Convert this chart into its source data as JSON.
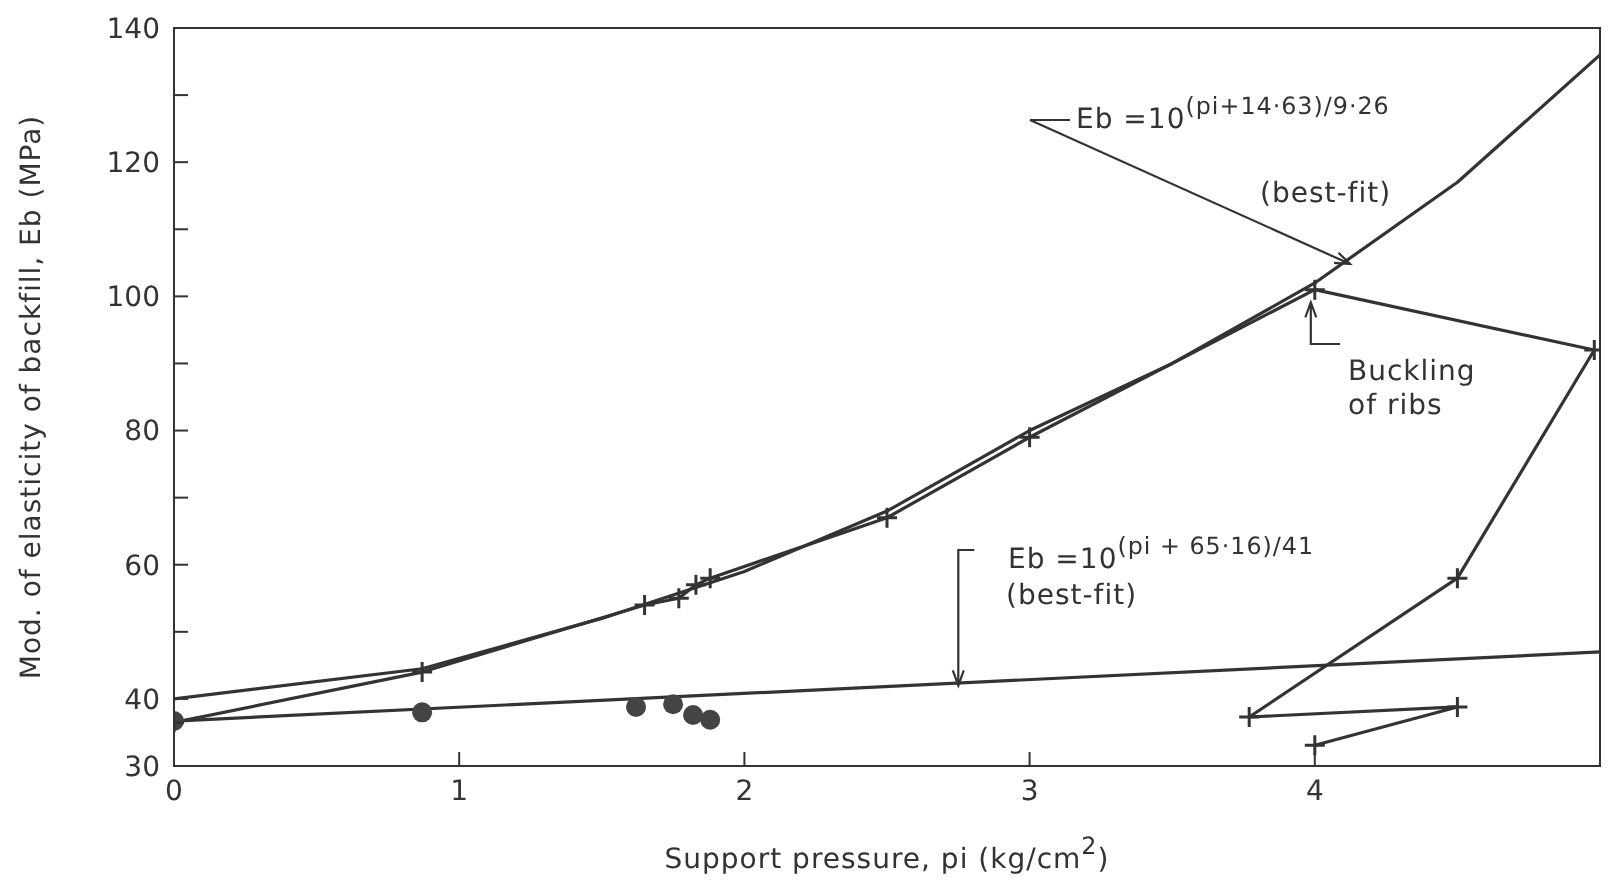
{
  "chart_data": {
    "type": "line",
    "xlabel": "Support pressure, pi (kg/cm$^{2}$)",
    "ylabel": "Mod. of elasticity of backfill, Eb (MPa)",
    "xlim": [
      0,
      5
    ],
    "xticks": [
      0,
      1,
      2,
      3,
      4
    ],
    "ylim": [
      30,
      140
    ],
    "yticks": [
      30,
      40,
      {
        "value": 50,
        "label": null
      },
      60,
      {
        "value": 70,
        "label": null
      },
      80,
      {
        "value": 90,
        "label": null
      },
      100,
      {
        "value": 110,
        "label": null
      },
      120,
      {
        "value": 130,
        "label": null
      },
      140
    ],
    "line_style": "solid",
    "series": [
      {
        "type": "scatter",
        "marker": "circle",
        "color": "#444444",
        "x": [
          0,
          0.87,
          1.62,
          1.75,
          1.82,
          1.88
        ],
        "values": [
          36.7,
          38,
          38.8,
          39.2,
          37.6,
          36.9
        ]
      },
      {
        "marker": "none",
        "color": "#333333",
        "x": [
          0,
          0.87,
          1.5,
          2,
          2.5,
          3,
          3.5,
          4,
          4.5,
          5
        ],
        "values": [
          40,
          44.5,
          52,
          59,
          68,
          80,
          90,
          102,
          117,
          136
        ]
      },
      {
        "marker": "cross",
        "color": "#333333",
        "x": [
          0,
          0.87,
          1.65,
          1.77,
          1.83,
          1.88,
          2.5,
          3,
          4,
          4.98,
          4.5,
          3.77,
          4.5,
          4
        ],
        "values": [
          36.5,
          44,
          54,
          55,
          57,
          58,
          67,
          79,
          101,
          92,
          58,
          37.3,
          38.8,
          33.1
        ]
      },
      {
        "marker": "none",
        "color": "#333333",
        "x": [
          0,
          5
        ],
        "values": [
          36.7,
          47
        ]
      }
    ],
    "annotations": [
      "Eb =10$^{(pi+14·63)/9·26}$",
      "(best-fit)",
      {
        "text": "Buckling of ribs",
        "x": 4,
        "y": 100
      },
      {
        "text": "Eb =10$^{(pi + 65·16)/41}$",
        "x": 2.75,
        "y": 42
      },
      "(best-fit)"
    ]
  }
}
